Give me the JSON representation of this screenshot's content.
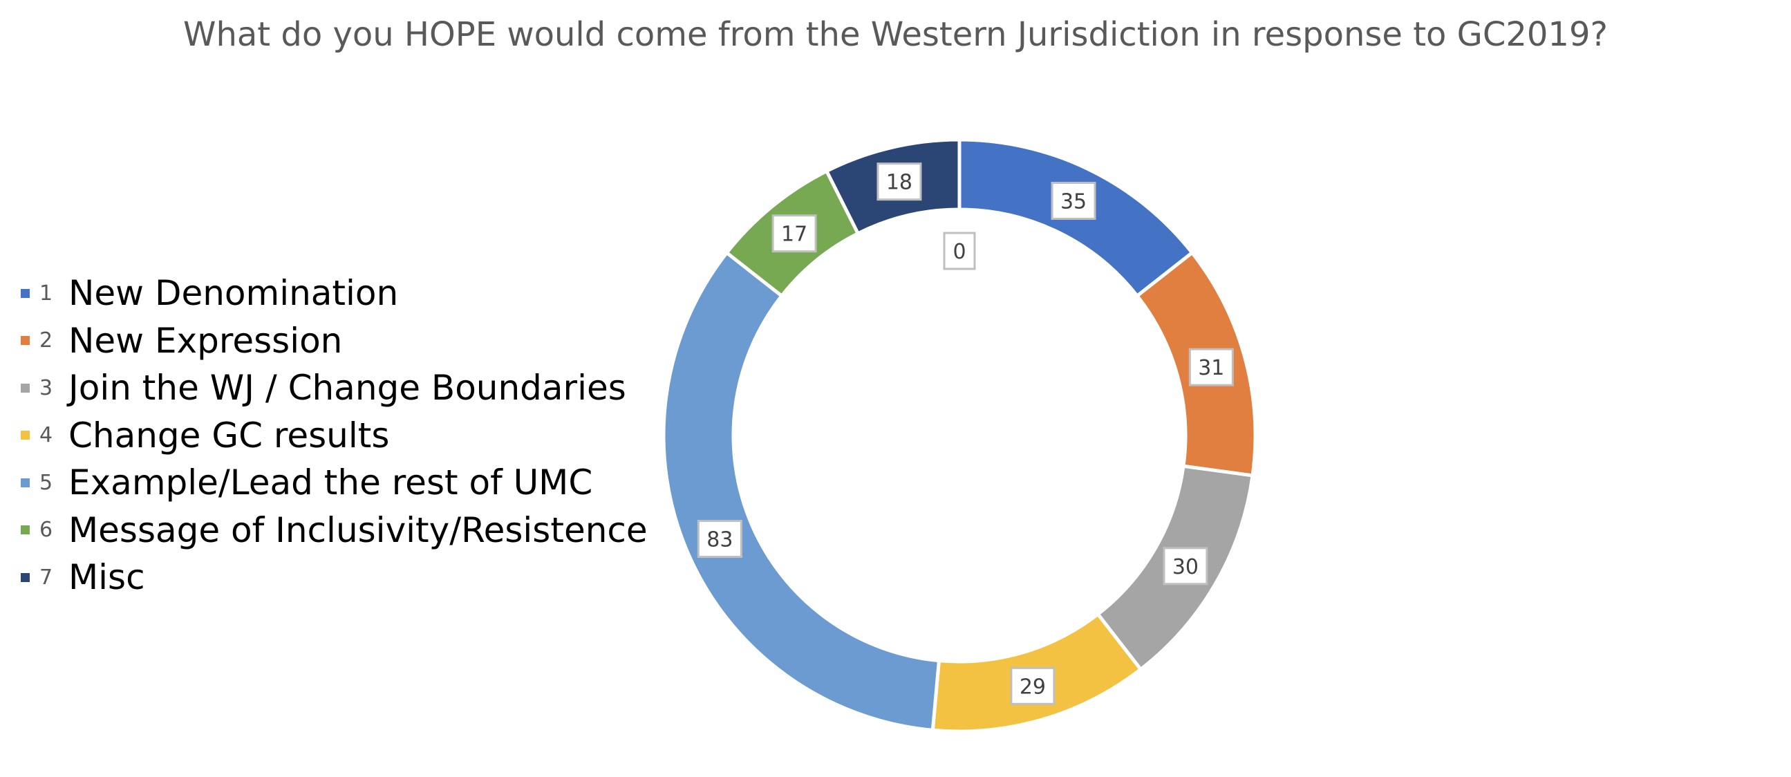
{
  "chart_data": {
    "type": "pie",
    "donut": true,
    "title": "What do you HOPE would come from the Western Jurisdiction in response to GC2019?",
    "legend_position": "left",
    "categories": [
      {
        "num": "1",
        "label": "New Denomination",
        "value": 35,
        "color": "#4472C4"
      },
      {
        "num": "2",
        "label": "New Expression",
        "value": 31,
        "color": "#E07F3F"
      },
      {
        "num": "3",
        "label": "Join the WJ / Change Boundaries",
        "value": 30,
        "color": "#A5A5A5"
      },
      {
        "num": "4",
        "label": "Change GC results",
        "value": 29,
        "color": "#F4C242"
      },
      {
        "num": "5",
        "label": "Example/Lead the rest of UMC",
        "value": 83,
        "color": "#6B9BD1"
      },
      {
        "num": "6",
        "label": "Message of Inclusivity/Resistence",
        "value": 17,
        "color": "#77A852"
      },
      {
        "num": "7",
        "label": "Misc",
        "value": 18,
        "color": "#2B4574"
      }
    ],
    "extra_data_label": "0"
  }
}
